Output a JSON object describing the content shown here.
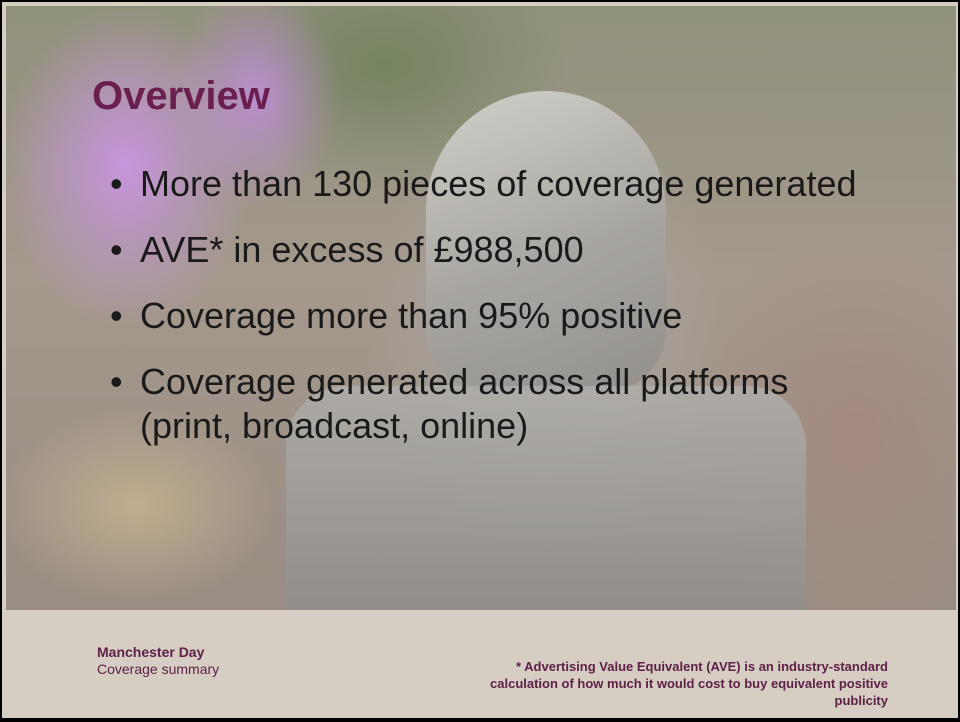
{
  "slide": {
    "title": "Overview",
    "bullets": [
      "More than 130 pieces of coverage generated",
      "AVE* in excess of £988,500",
      "Coverage more than 95% positive",
      "Coverage generated across all platforms (print, broadcast, online)"
    ],
    "bullet_glyph": "•"
  },
  "footer": {
    "event_name": "Manchester Day",
    "subtitle": "Coverage summary",
    "footnote": "* Advertising Value Equivalent (AVE) is an industry-standard calculation of how much it would cost to buy equivalent positive publicity"
  },
  "colors": {
    "title": "#6a1f4f",
    "footer_text": "#5e2148",
    "footer_bg": "#d6cdc3"
  }
}
